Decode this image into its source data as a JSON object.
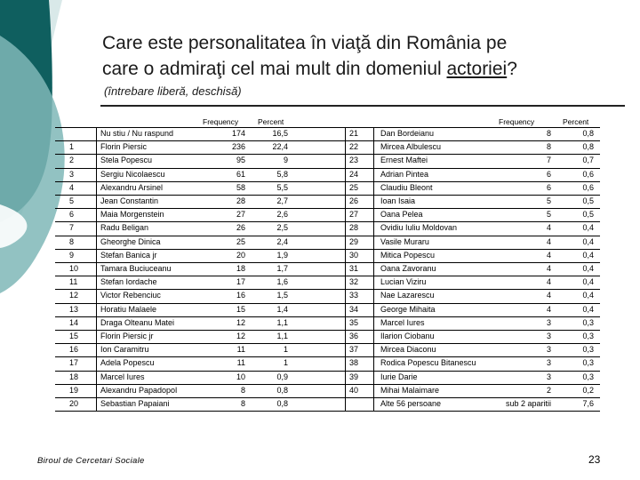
{
  "title_line1": "Care este personalitatea în viaţă din România pe",
  "title_line2_pre": "care o admiraţi cel mai mult din domeniul ",
  "title_line2_underlined": "actoriei",
  "title_line2_post": "?",
  "subtitle": "(întrebare liberă, deschisă)",
  "headers": {
    "frequency": "Frequency",
    "percent": "Percent"
  },
  "left_rows": [
    {
      "no": "",
      "name": "Nu stiu / Nu raspund",
      "freq": "174",
      "pct": "16,5"
    },
    {
      "no": "1",
      "name": "Florin Piersic",
      "freq": "236",
      "pct": "22,4"
    },
    {
      "no": "2",
      "name": "Stela Popescu",
      "freq": "95",
      "pct": "9"
    },
    {
      "no": "3",
      "name": "Sergiu Nicolaescu",
      "freq": "61",
      "pct": "5,8"
    },
    {
      "no": "4",
      "name": "Alexandru Arsinel",
      "freq": "58",
      "pct": "5,5"
    },
    {
      "no": "5",
      "name": "Jean Constantin",
      "freq": "28",
      "pct": "2,7"
    },
    {
      "no": "6",
      "name": "Maia Morgenstein",
      "freq": "27",
      "pct": "2,6"
    },
    {
      "no": "7",
      "name": "Radu Beligan",
      "freq": "26",
      "pct": "2,5"
    },
    {
      "no": "8",
      "name": "Gheorghe Dinica",
      "freq": "25",
      "pct": "2,4"
    },
    {
      "no": "9",
      "name": "Stefan Banica jr",
      "freq": "20",
      "pct": "1,9"
    },
    {
      "no": "10",
      "name": "Tamara Buciuceanu",
      "freq": "18",
      "pct": "1,7"
    },
    {
      "no": "11",
      "name": "Stefan Iordache",
      "freq": "17",
      "pct": "1,6"
    },
    {
      "no": "12",
      "name": "Victor Rebenciuc",
      "freq": "16",
      "pct": "1,5"
    },
    {
      "no": "13",
      "name": "Horatiu Malaele",
      "freq": "15",
      "pct": "1,4"
    },
    {
      "no": "14",
      "name": "Draga Olteanu Matei",
      "freq": "12",
      "pct": "1,1"
    },
    {
      "no": "15",
      "name": "Florin Piersic jr",
      "freq": "12",
      "pct": "1,1"
    },
    {
      "no": "16",
      "name": "Ion Caramitru",
      "freq": "11",
      "pct": "1"
    },
    {
      "no": "17",
      "name": "Adela Popescu",
      "freq": "11",
      "pct": "1"
    },
    {
      "no": "18",
      "name": "Marcel Iures",
      "freq": "10",
      "pct": "0,9"
    },
    {
      "no": "19",
      "name": "Alexandru Papadopol",
      "freq": "8",
      "pct": "0,8"
    },
    {
      "no": "20",
      "name": "Sebastian Papaiani",
      "freq": "8",
      "pct": "0,8"
    }
  ],
  "right_rows": [
    {
      "no": "21",
      "name": "Dan Bordeianu",
      "freq": "8",
      "pct": "0,8"
    },
    {
      "no": "22",
      "name": "Mircea Albulescu",
      "freq": "8",
      "pct": "0,8"
    },
    {
      "no": "23",
      "name": "Ernest Maftei",
      "freq": "7",
      "pct": "0,7"
    },
    {
      "no": "24",
      "name": "Adrian Pintea",
      "freq": "6",
      "pct": "0,6"
    },
    {
      "no": "25",
      "name": "Claudiu Bleont",
      "freq": "6",
      "pct": "0,6"
    },
    {
      "no": "26",
      "name": "Ioan Isaia",
      "freq": "5",
      "pct": "0,5"
    },
    {
      "no": "27",
      "name": "Oana Pelea",
      "freq": "5",
      "pct": "0,5"
    },
    {
      "no": "28",
      "name": "Ovidiu Iuliu Moldovan",
      "freq": "4",
      "pct": "0,4"
    },
    {
      "no": "29",
      "name": "Vasile Muraru",
      "freq": "4",
      "pct": "0,4"
    },
    {
      "no": "30",
      "name": "Mitica Popescu",
      "freq": "4",
      "pct": "0,4"
    },
    {
      "no": "31",
      "name": "Oana Zavoranu",
      "freq": "4",
      "pct": "0,4"
    },
    {
      "no": "32",
      "name": "Lucian Viziru",
      "freq": "4",
      "pct": "0,4"
    },
    {
      "no": "33",
      "name": "Nae Lazarescu",
      "freq": "4",
      "pct": "0,4"
    },
    {
      "no": "34",
      "name": "George Mihaita",
      "freq": "4",
      "pct": "0,4"
    },
    {
      "no": "35",
      "name": "Marcel Iures",
      "freq": "3",
      "pct": "0,3"
    },
    {
      "no": "36",
      "name": "Ilarion Ciobanu",
      "freq": "3",
      "pct": "0,3"
    },
    {
      "no": "37",
      "name": "Mircea Diaconu",
      "freq": "3",
      "pct": "0,3"
    },
    {
      "no": "38",
      "name": "Rodica Popescu Bitanescu",
      "freq": "3",
      "pct": "0,3"
    },
    {
      "no": "39",
      "name": "Iurie Darie",
      "freq": "3",
      "pct": "0,3"
    },
    {
      "no": "40",
      "name": "Mihai Malaimare",
      "freq": "2",
      "pct": "0,2"
    },
    {
      "no": "",
      "name": "Alte 56 persoane",
      "freq": "sub 2 aparitii",
      "pct": "7,6"
    }
  ],
  "footer": "Biroul de Cercetari Sociale",
  "page_number": "23",
  "colors": {
    "teal_dark": "#0f5f5f",
    "teal_light": "#7fb7b7",
    "pale": "#cfe3e3"
  }
}
